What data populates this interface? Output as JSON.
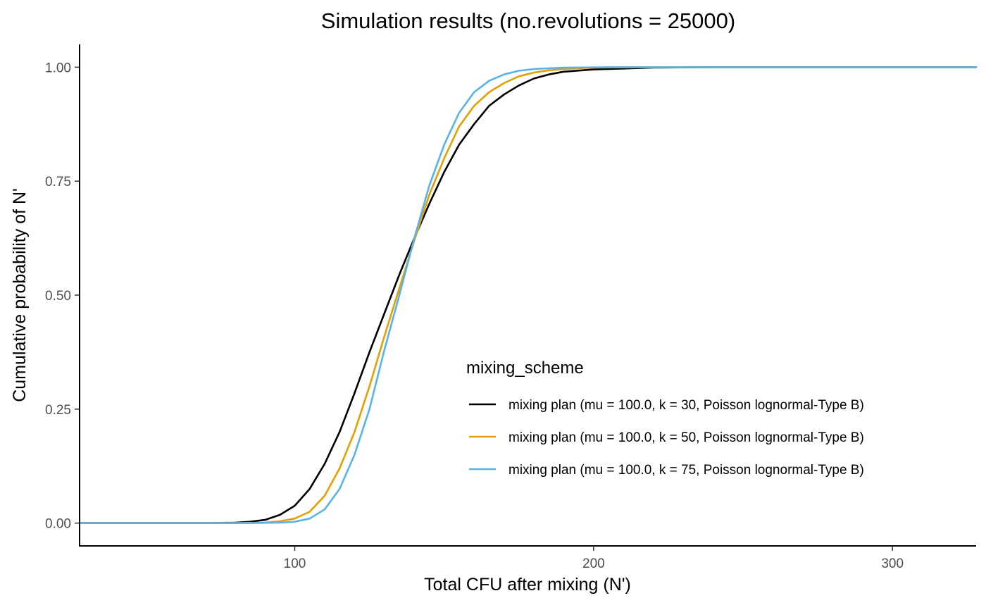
{
  "chart_data": {
    "type": "line",
    "title": "Simulation results (no.revolutions = 25000)",
    "xlabel": "Total CFU after mixing (N')",
    "ylabel": "Cumulative probability of N'",
    "xlim": [
      28,
      328
    ],
    "ylim": [
      -0.05,
      1.05
    ],
    "x_ticks": [
      100,
      200,
      300
    ],
    "x_tick_labels": [
      "100",
      "200",
      "300"
    ],
    "y_ticks": [
      0,
      0.25,
      0.5,
      0.75,
      1
    ],
    "y_tick_labels": [
      "0.00",
      "0.25",
      "0.50",
      "0.75",
      "1.00"
    ],
    "grid": false,
    "legend": {
      "title": "mixing_scheme",
      "position": "inside-bottom-right"
    },
    "series": [
      {
        "name": "mixing plan (mu = 100.0, k = 30, Poisson lognormal-Type B)",
        "color": "#000000",
        "points": [
          [
            28,
            0
          ],
          [
            70,
            0
          ],
          [
            80,
            0.001
          ],
          [
            85,
            0.003
          ],
          [
            90,
            0.007
          ],
          [
            95,
            0.018
          ],
          [
            100,
            0.038
          ],
          [
            105,
            0.075
          ],
          [
            110,
            0.13
          ],
          [
            115,
            0.2
          ],
          [
            120,
            0.285
          ],
          [
            125,
            0.375
          ],
          [
            130,
            0.46
          ],
          [
            135,
            0.545
          ],
          [
            140,
            0.625
          ],
          [
            145,
            0.7
          ],
          [
            150,
            0.77
          ],
          [
            155,
            0.83
          ],
          [
            160,
            0.875
          ],
          [
            165,
            0.915
          ],
          [
            170,
            0.94
          ],
          [
            175,
            0.96
          ],
          [
            180,
            0.975
          ],
          [
            185,
            0.984
          ],
          [
            190,
            0.99
          ],
          [
            200,
            0.995
          ],
          [
            220,
            0.999
          ],
          [
            240,
            1
          ],
          [
            328,
            1
          ]
        ]
      },
      {
        "name": "mixing plan (mu = 100.0, k = 50, Poisson lognormal-Type B)",
        "color": "#E69F00",
        "points": [
          [
            28,
            0
          ],
          [
            80,
            0
          ],
          [
            90,
            0.001
          ],
          [
            95,
            0.004
          ],
          [
            100,
            0.01
          ],
          [
            105,
            0.025
          ],
          [
            110,
            0.06
          ],
          [
            115,
            0.12
          ],
          [
            120,
            0.2
          ],
          [
            125,
            0.3
          ],
          [
            130,
            0.41
          ],
          [
            135,
            0.515
          ],
          [
            140,
            0.62
          ],
          [
            145,
            0.72
          ],
          [
            150,
            0.8
          ],
          [
            155,
            0.87
          ],
          [
            160,
            0.915
          ],
          [
            165,
            0.945
          ],
          [
            170,
            0.965
          ],
          [
            175,
            0.98
          ],
          [
            180,
            0.988
          ],
          [
            185,
            0.993
          ],
          [
            190,
            0.996
          ],
          [
            200,
            0.999
          ],
          [
            215,
            1
          ],
          [
            328,
            1
          ]
        ]
      },
      {
        "name": "mixing plan (mu = 100.0, k = 75, Poisson lognormal-Type B)",
        "color": "#56B4E9",
        "points": [
          [
            28,
            0
          ],
          [
            85,
            0
          ],
          [
            95,
            0.001
          ],
          [
            100,
            0.003
          ],
          [
            105,
            0.01
          ],
          [
            110,
            0.03
          ],
          [
            115,
            0.075
          ],
          [
            120,
            0.15
          ],
          [
            125,
            0.25
          ],
          [
            130,
            0.38
          ],
          [
            135,
            0.5
          ],
          [
            140,
            0.625
          ],
          [
            145,
            0.74
          ],
          [
            150,
            0.83
          ],
          [
            155,
            0.9
          ],
          [
            160,
            0.945
          ],
          [
            165,
            0.97
          ],
          [
            170,
            0.984
          ],
          [
            175,
            0.992
          ],
          [
            180,
            0.996
          ],
          [
            190,
            0.999
          ],
          [
            205,
            1
          ],
          [
            328,
            1
          ]
        ]
      }
    ]
  }
}
